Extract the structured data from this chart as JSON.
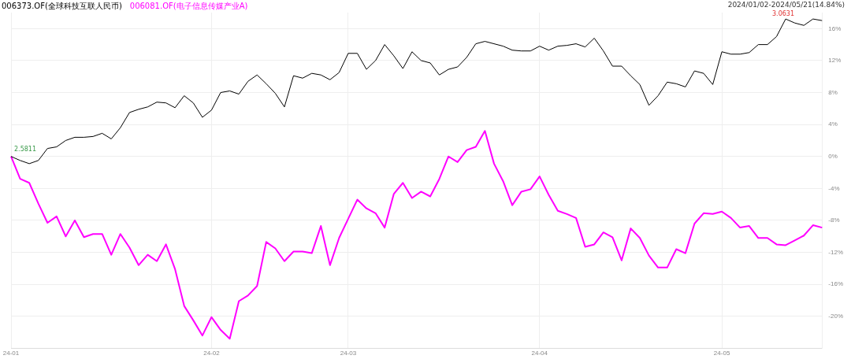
{
  "chart_data": {
    "type": "line",
    "categories": [
      "24-01",
      null,
      null,
      null,
      null,
      null,
      null,
      null,
      null,
      null,
      null,
      null,
      null,
      null,
      null,
      null,
      null,
      null,
      null,
      null,
      null,
      null,
      "24-02",
      null,
      null,
      null,
      null,
      null,
      null,
      null,
      null,
      null,
      null,
      null,
      null,
      null,
      null,
      "24-03",
      null,
      null,
      null,
      null,
      null,
      null,
      null,
      null,
      null,
      null,
      null,
      null,
      null,
      null,
      null,
      null,
      null,
      null,
      null,
      null,
      "24-04",
      null,
      null,
      null,
      null,
      null,
      null,
      null,
      null,
      null,
      null,
      null,
      null,
      null,
      null,
      null,
      null,
      null,
      null,
      null,
      "24-05",
      null,
      null,
      null,
      null,
      null,
      null,
      null,
      null,
      null,
      null,
      null
    ],
    "series": [
      {
        "name": "006373.OF(全球科技互联人民币)",
        "color": "#000000",
        "values": [
          0,
          -0.5,
          -0.9,
          -0.5,
          1.0,
          1.2,
          2.0,
          2.4,
          2.4,
          2.5,
          2.9,
          2.2,
          3.6,
          5.5,
          5.9,
          6.2,
          6.8,
          6.7,
          6.1,
          7.6,
          6.7,
          4.9,
          5.8,
          8.0,
          8.2,
          7.8,
          9.4,
          10.2,
          9.1,
          7.9,
          6.2,
          10.1,
          9.8,
          10.4,
          10.2,
          9.6,
          10.5,
          12.9,
          12.9,
          10.9,
          12.0,
          14.0,
          12.6,
          11.0,
          13.1,
          12.0,
          11.7,
          10.2,
          10.9,
          11.2,
          12.4,
          14.1,
          14.4,
          14.1,
          13.8,
          13.3,
          13.2,
          13.2,
          13.8,
          13.3,
          13.8,
          13.9,
          14.1,
          13.7,
          14.8,
          13.2,
          11.3,
          11.3,
          10.1,
          9.0,
          6.4,
          7.6,
          9.3,
          9.1,
          8.7,
          10.7,
          10.4,
          9.0,
          13.1,
          12.8,
          12.8,
          13.0,
          14.0,
          14.0,
          15.0,
          17.2,
          16.7,
          16.4,
          17.2,
          17.0
        ]
      },
      {
        "name": "006081.OF(电子信息传媒产业A)",
        "color": "#ff00ff",
        "values": [
          0,
          -2.8,
          -3.3,
          -5.9,
          -8.3,
          -7.5,
          -10.0,
          -8.0,
          -10.1,
          -9.7,
          -9.7,
          -12.3,
          -9.7,
          -11.4,
          -13.6,
          -12.3,
          -13.1,
          -11.0,
          -14.1,
          -18.7,
          -20.5,
          -22.4,
          -20.1,
          -21.7,
          -22.8,
          -18.1,
          -17.4,
          -16.2,
          -10.7,
          -11.5,
          -13.1,
          -11.9,
          -11.9,
          -12.1,
          -8.7,
          -13.6,
          -10.2,
          -7.8,
          -5.4,
          -6.5,
          -7.1,
          -8.9,
          -4.7,
          -3.3,
          -5.2,
          -4.4,
          -5.0,
          -2.8,
          0,
          -0.7,
          0.8,
          1.2,
          3.2,
          -0.9,
          -3.1,
          -6.1,
          -4.4,
          -4.1,
          -2.5,
          -4.8,
          -6.8,
          -7.2,
          -7.7,
          -11.3,
          -11.0,
          -9.5,
          -10.1,
          -13.0,
          -9.0,
          -10.2,
          -12.4,
          -13.9,
          -13.9,
          -11.6,
          -12.1,
          -8.4,
          -7.1,
          -7.2,
          -6.9,
          -7.7,
          -8.9,
          -8.7,
          -10.2,
          -10.2,
          -11.0,
          -11.1,
          -10.5,
          -9.9,
          -8.6,
          -8.9
        ]
      }
    ],
    "ylim": [
      -24,
      18
    ],
    "yticks": [
      {
        "value": -20,
        "label": "-20%"
      },
      {
        "value": -16,
        "label": "-16%"
      },
      {
        "value": -12,
        "label": "-12%"
      },
      {
        "value": -8,
        "label": "-8%"
      },
      {
        "value": -4,
        "label": "-4%"
      },
      {
        "value": 0,
        "label": "0%"
      },
      {
        "value": 4,
        "label": "4%"
      },
      {
        "value": 8,
        "label": "8%"
      },
      {
        "value": 12,
        "label": "12%"
      },
      {
        "value": 16,
        "label": "16%"
      }
    ],
    "grid": true,
    "legend": "top left",
    "annotations": [
      "2024/01/02-2024/05/21(14.84%)",
      "3.0631",
      "2.5811"
    ]
  }
}
